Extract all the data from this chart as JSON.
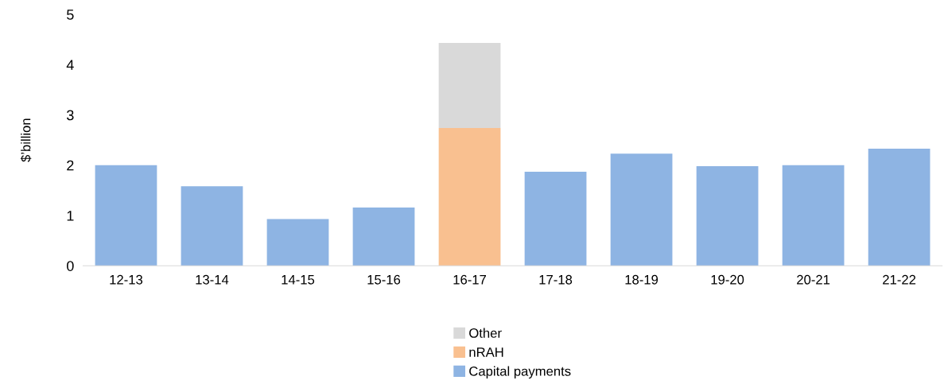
{
  "chart_data": {
    "type": "bar",
    "stacked": true,
    "ylabel": "$’billion",
    "categories": [
      "12-13",
      "13-14",
      "14-15",
      "15-16",
      "16-17",
      "17-18",
      "18-19",
      "19-20",
      "20-21",
      "21-22"
    ],
    "series": [
      {
        "name": "Capital payments",
        "color": "#8eb4e3",
        "values": [
          2.0,
          1.58,
          0.93,
          1.16,
          null,
          1.87,
          2.23,
          1.98,
          2.0,
          2.33
        ]
      },
      {
        "name": "nRAH",
        "color": "#f9c090",
        "values": [
          null,
          null,
          null,
          null,
          2.74,
          null,
          null,
          null,
          null,
          null
        ]
      },
      {
        "name": "Other",
        "color": "#d9d9d9",
        "values": [
          null,
          null,
          null,
          null,
          1.69,
          null,
          null,
          null,
          null,
          null
        ]
      }
    ],
    "ylim": [
      0,
      5
    ],
    "yticks": [
      0,
      1,
      2,
      3,
      4,
      5
    ],
    "grid": false,
    "legend": "bottom"
  }
}
